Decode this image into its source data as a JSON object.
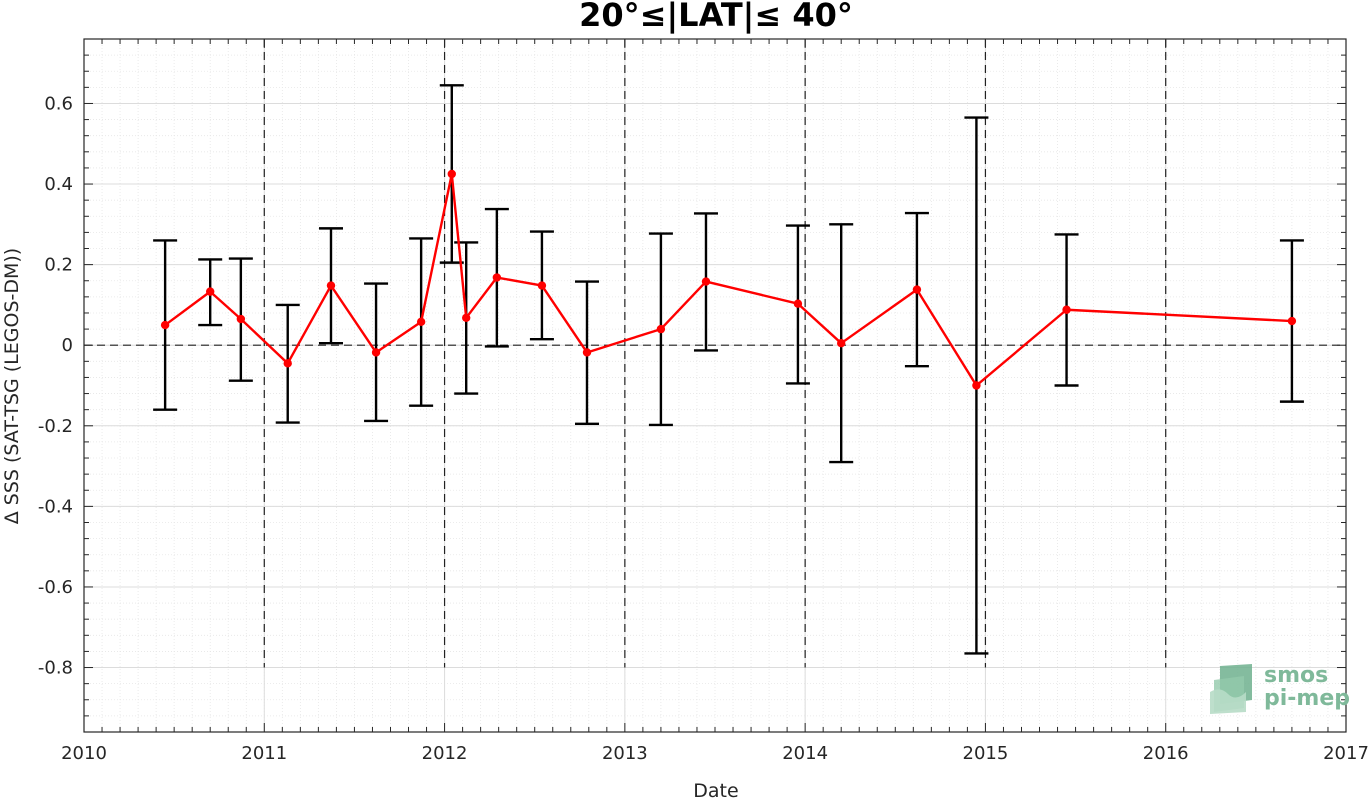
{
  "chart_data": {
    "type": "scatter",
    "title": "20°≤|LAT|≤ 40°",
    "xlabel": "Date",
    "ylabel": "Δ SSS (SAT-TSG (LEGOS-DM))",
    "xlim": [
      2010,
      2017
    ],
    "ylim": [
      -0.96,
      0.76
    ],
    "x_ticks": [
      "2010",
      "2011",
      "2012",
      "2013",
      "2014",
      "2015",
      "2016",
      "2017"
    ],
    "y_ticks": [
      "-0.8",
      "-0.6",
      "-0.4",
      "-0.2",
      "0",
      "0.2",
      "0.4",
      "0.6"
    ],
    "grid": true,
    "series": [
      {
        "line_color": "#ff0000",
        "errorbar_color": "#000000",
        "x": [
          2010.45,
          2010.7,
          2010.87,
          2011.13,
          2011.37,
          2011.62,
          2011.87,
          2012.04,
          2012.12,
          2012.29,
          2012.54,
          2012.79,
          2013.2,
          2013.45,
          2013.96,
          2014.2,
          2014.62,
          2014.95,
          2015.45,
          2016.7
        ],
        "y": [
          0.05,
          0.133,
          0.065,
          -0.045,
          0.148,
          -0.018,
          0.058,
          0.425,
          0.068,
          0.168,
          0.148,
          -0.018,
          0.04,
          0.158,
          0.103,
          0.005,
          0.138,
          -0.1,
          0.088,
          0.06
        ],
        "err_low": [
          -0.16,
          0.05,
          -0.088,
          -0.192,
          0.005,
          -0.188,
          -0.15,
          0.205,
          -0.12,
          -0.003,
          0.015,
          -0.195,
          -0.198,
          -0.013,
          -0.095,
          -0.29,
          -0.052,
          -0.765,
          -0.1,
          -0.14
        ],
        "err_high": [
          0.26,
          0.213,
          0.215,
          0.1,
          0.29,
          0.153,
          0.265,
          0.645,
          0.255,
          0.338,
          0.282,
          0.158,
          0.277,
          0.327,
          0.297,
          0.3,
          0.328,
          0.565,
          0.275,
          0.26
        ]
      }
    ],
    "reference_lines": {
      "horizontal_y": 0,
      "vertical_x": [
        2011,
        2012,
        2013,
        2014,
        2015,
        2016
      ]
    }
  },
  "logo": {
    "line1": "smos",
    "line2": "pi-mep"
  }
}
